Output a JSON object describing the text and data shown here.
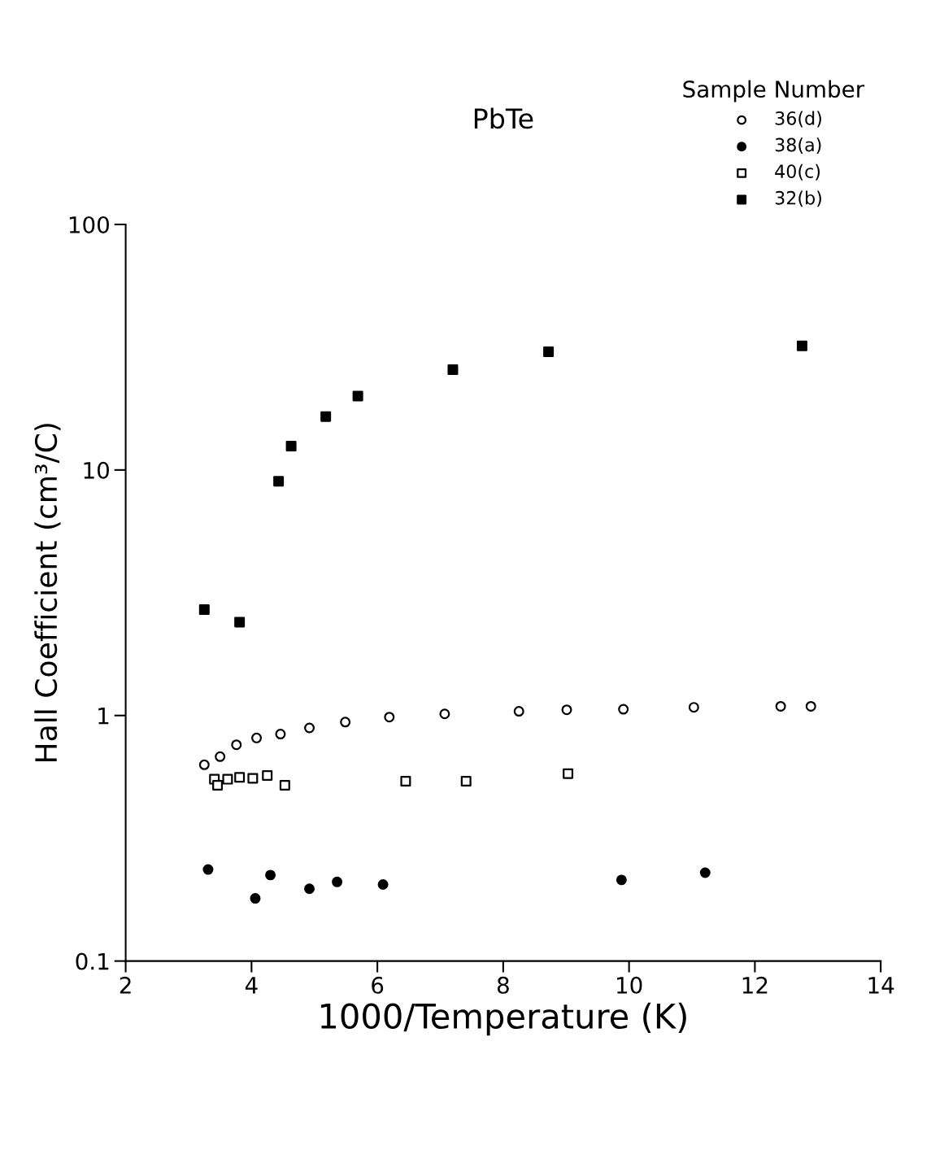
{
  "chart_data": {
    "type": "scatter",
    "title": "PbTe",
    "xlabel": "1000/Temperature (K)",
    "ylabel": "Hall Coefficient (cm³/C)",
    "legend_title": "Sample Number",
    "legend": "top right",
    "log": "y",
    "grid": false,
    "xlim": [
      2,
      14
    ],
    "xticks": [
      2,
      4,
      6,
      8,
      10,
      12,
      14
    ],
    "ylim": [
      0.1,
      100
    ],
    "yticks": [
      0.1,
      1,
      10,
      100
    ],
    "series": [
      {
        "name": "36(d)",
        "color": "#000000",
        "marker": "circle",
        "x": [
          3.25,
          3.5,
          3.76,
          4.08,
          4.46,
          4.92,
          5.49,
          6.19,
          7.07,
          8.25,
          9.01,
          9.91,
          11.03,
          12.41,
          12.89
        ],
        "values": [
          0.63,
          0.68,
          0.76,
          0.81,
          0.84,
          0.89,
          0.94,
          0.985,
          1.015,
          1.04,
          1.055,
          1.06,
          1.08,
          1.09,
          1.09
        ]
      },
      {
        "name": "38(a)",
        "color": "#000000",
        "marker": "circle",
        "x": [
          3.31,
          4.06,
          4.3,
          4.92,
          5.36,
          6.09,
          9.88,
          11.21
        ],
        "values": [
          0.236,
          0.18,
          0.224,
          0.197,
          0.21,
          0.205,
          0.214,
          0.229
        ]
      },
      {
        "name": "40(c)",
        "color": "#000000",
        "marker": "square",
        "x": [
          3.41,
          3.46,
          3.62,
          3.81,
          4.02,
          4.25,
          4.53,
          6.45,
          7.41,
          9.03
        ],
        "values": [
          0.55,
          0.52,
          0.55,
          0.56,
          0.555,
          0.57,
          0.52,
          0.54,
          0.54,
          0.58
        ]
      },
      {
        "name": "32(b)",
        "color": "#000000",
        "marker": "square",
        "x": [
          3.25,
          3.81,
          4.43,
          4.63,
          5.18,
          5.69,
          7.2,
          8.72,
          12.75
        ],
        "values": [
          2.7,
          2.4,
          9.0,
          12.5,
          16.5,
          20,
          25.6,
          30.3,
          32
        ]
      }
    ]
  }
}
